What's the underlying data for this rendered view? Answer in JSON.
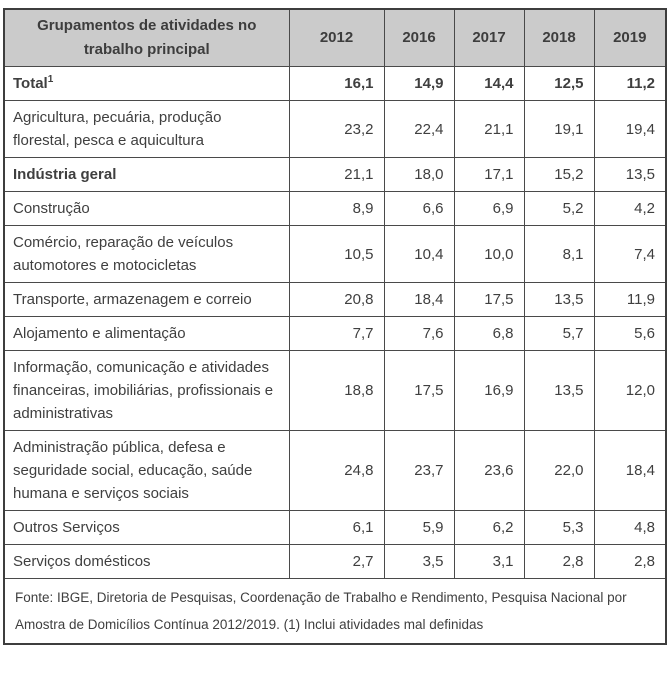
{
  "colors": {
    "header_bg": "#cbcbcb",
    "border": "#4a4a4a",
    "outer_border": "#3d3d3d",
    "text": "#3f3f3f",
    "page_bg": "#ffffff"
  },
  "table": {
    "header": {
      "groupings_label": "Grupamentos de atividades no trabalho principal",
      "years": [
        "2012",
        "2016",
        "2017",
        "2018",
        "2019"
      ]
    },
    "rows": [
      {
        "label": "Total",
        "sup": "1",
        "bold_label": true,
        "bold_values": true,
        "values": [
          "16,1",
          "14,9",
          "14,4",
          "12,5",
          "11,2"
        ]
      },
      {
        "label": "Agricultura, pecuária, produção florestal, pesca e aquicultura",
        "bold_label": false,
        "bold_values": false,
        "values": [
          "23,2",
          "22,4",
          "21,1",
          "19,1",
          "19,4"
        ]
      },
      {
        "label": "Indústria geral",
        "bold_label": true,
        "bold_values": false,
        "values": [
          "21,1",
          "18,0",
          "17,1",
          "15,2",
          "13,5"
        ]
      },
      {
        "label": "Construção",
        "bold_label": false,
        "bold_values": false,
        "values": [
          "8,9",
          "6,6",
          "6,9",
          "5,2",
          "4,2"
        ]
      },
      {
        "label": "Comércio, reparação de veículos automotores e motocicletas",
        "bold_label": false,
        "bold_values": false,
        "values": [
          "10,5",
          "10,4",
          "10,0",
          "8,1",
          "7,4"
        ]
      },
      {
        "label": "Transporte, armazenagem e correio",
        "bold_label": false,
        "bold_values": false,
        "values": [
          "20,8",
          "18,4",
          "17,5",
          "13,5",
          "11,9"
        ]
      },
      {
        "label": "Alojamento e alimentação",
        "bold_label": false,
        "bold_values": false,
        "values": [
          "7,7",
          "7,6",
          "6,8",
          "5,7",
          "5,6"
        ]
      },
      {
        "label": "Informação, comunicação e atividades financeiras, imobiliárias, profissionais e administrativas",
        "bold_label": false,
        "bold_values": false,
        "values": [
          "18,8",
          "17,5",
          "16,9",
          "13,5",
          "12,0"
        ]
      },
      {
        "label": "Administração pública, defesa e seguridade social, educação, saúde humana e serviços sociais",
        "bold_label": false,
        "bold_values": false,
        "values": [
          "24,8",
          "23,7",
          "23,6",
          "22,0",
          "18,4"
        ]
      },
      {
        "label": "Outros Serviços",
        "bold_label": false,
        "bold_values": false,
        "values": [
          "6,1",
          "5,9",
          "6,2",
          "5,3",
          "4,8"
        ]
      },
      {
        "label": "Serviços domésticos",
        "bold_label": false,
        "bold_values": false,
        "values": [
          "2,7",
          "3,5",
          "3,1",
          "2,8",
          "2,8"
        ]
      }
    ],
    "footnote": "Fonte: IBGE, Diretoria de Pesquisas, Coordenação de Trabalho e Rendimento, Pesquisa Nacional por Amostra de Domicílios Contínua 2012/2019. (1) Inclui atividades mal definidas"
  },
  "chart_data": {
    "type": "table",
    "title": "Grupamentos de atividades no trabalho principal",
    "columns": [
      "2012",
      "2016",
      "2017",
      "2018",
      "2019"
    ],
    "rows": [
      {
        "category": "Total (1)",
        "values": [
          16.1,
          14.9,
          14.4,
          12.5,
          11.2
        ]
      },
      {
        "category": "Agricultura, pecuária, produção florestal, pesca e aquicultura",
        "values": [
          23.2,
          22.4,
          21.1,
          19.1,
          19.4
        ]
      },
      {
        "category": "Indústria geral",
        "values": [
          21.1,
          18.0,
          17.1,
          15.2,
          13.5
        ]
      },
      {
        "category": "Construção",
        "values": [
          8.9,
          6.6,
          6.9,
          5.2,
          4.2
        ]
      },
      {
        "category": "Comércio, reparação de veículos automotores e motocicletas",
        "values": [
          10.5,
          10.4,
          10.0,
          8.1,
          7.4
        ]
      },
      {
        "category": "Transporte, armazenagem e correio",
        "values": [
          20.8,
          18.4,
          17.5,
          13.5,
          11.9
        ]
      },
      {
        "category": "Alojamento e alimentação",
        "values": [
          7.7,
          7.6,
          6.8,
          5.7,
          5.6
        ]
      },
      {
        "category": "Informação, comunicação e atividades financeiras, imobiliárias, profissionais e administrativas",
        "values": [
          18.8,
          17.5,
          16.9,
          13.5,
          12.0
        ]
      },
      {
        "category": "Administração pública, defesa e seguridade social, educação, saúde humana e serviços sociais",
        "values": [
          24.8,
          23.7,
          23.6,
          22.0,
          18.4
        ]
      },
      {
        "category": "Outros Serviços",
        "values": [
          6.1,
          5.9,
          6.2,
          5.3,
          4.8
        ]
      },
      {
        "category": "Serviços domésticos",
        "values": [
          2.7,
          3.5,
          3.1,
          2.8,
          2.8
        ]
      }
    ],
    "source_note": "Fonte: IBGE, Diretoria de Pesquisas, Coordenação de Trabalho e Rendimento, Pesquisa Nacional por Amostra de Domicílios Contínua 2012/2019. (1) Inclui atividades mal definidas"
  }
}
